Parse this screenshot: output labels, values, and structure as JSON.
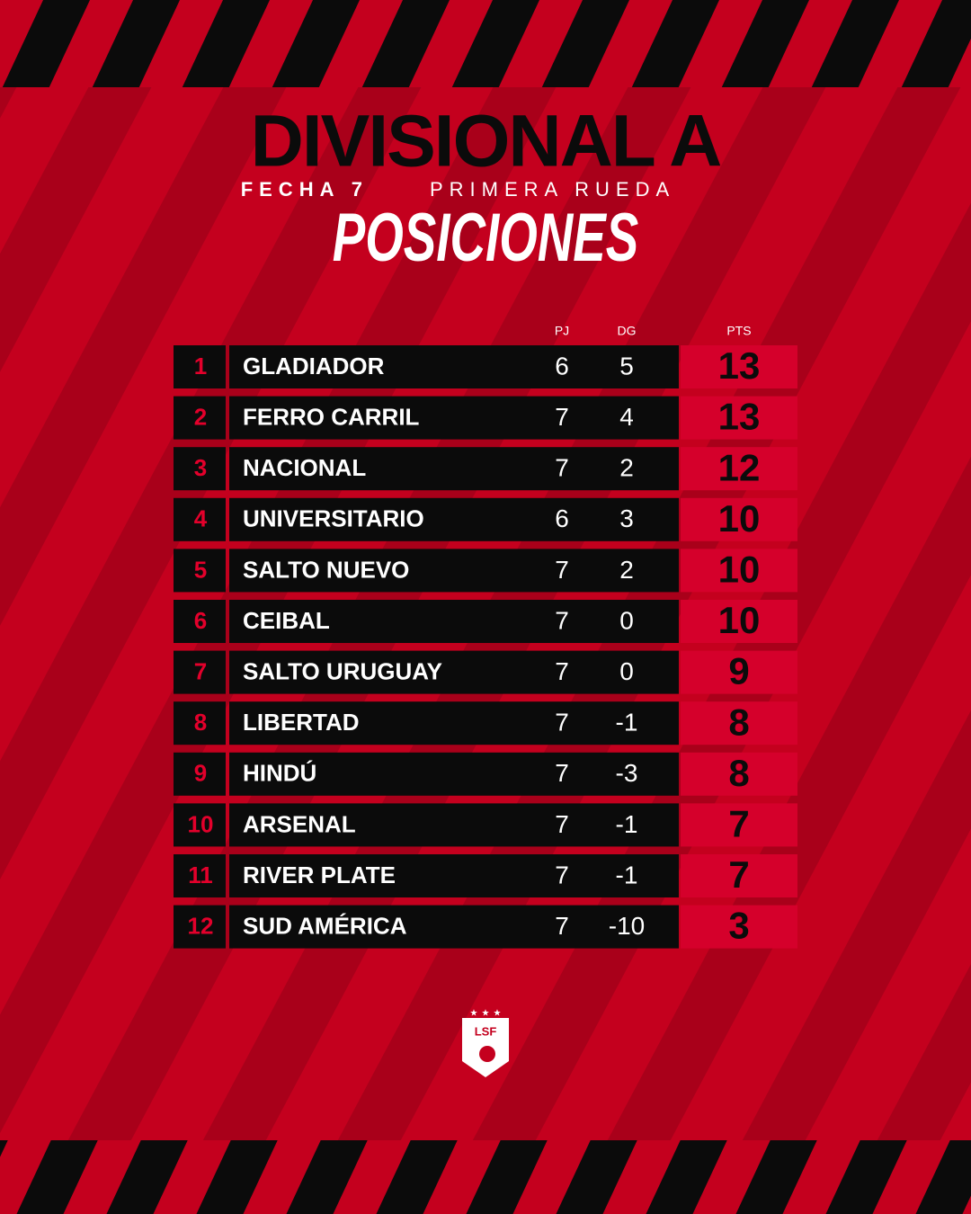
{
  "header": {
    "title": "DIVISIONAL A",
    "round": "FECHA 7",
    "stage": "PRIMERA RUEDA",
    "heading": "POSICIONES"
  },
  "table": {
    "columns": [
      "PJ",
      "DG",
      "PTS"
    ],
    "rows": [
      [
        1,
        "GLADIADOR",
        6,
        5,
        13
      ],
      [
        2,
        "FERRO CARRIL",
        7,
        4,
        13
      ],
      [
        3,
        "NACIONAL",
        7,
        2,
        12
      ],
      [
        4,
        "UNIVERSITARIO",
        6,
        3,
        10
      ],
      [
        5,
        "SALTO NUEVO",
        7,
        2,
        10
      ],
      [
        6,
        "CEIBAL",
        7,
        0,
        10
      ],
      [
        7,
        "SALTO URUGUAY",
        7,
        0,
        9
      ],
      [
        8,
        "LIBERTAD",
        7,
        -1,
        8
      ],
      [
        9,
        "HINDÚ",
        7,
        -3,
        8
      ],
      [
        10,
        "ARSENAL",
        7,
        -1,
        7
      ],
      [
        11,
        "RIVER PLATE",
        7,
        -1,
        7
      ],
      [
        12,
        "SUD AMÉRICA",
        7,
        -10,
        3
      ]
    ]
  },
  "logo": {
    "text": "LSF"
  }
}
